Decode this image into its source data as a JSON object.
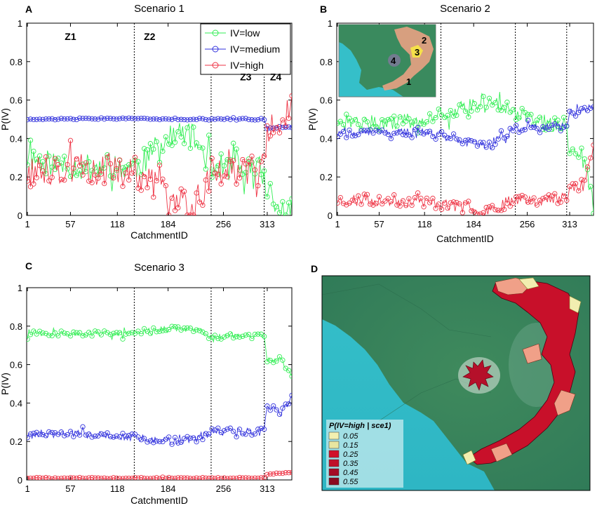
{
  "colors": {
    "low": "#33ee55",
    "medium": "#3333dd",
    "high": "#ee3344"
  },
  "chart_data": [
    {
      "panel": "A",
      "type": "line",
      "title": "Scenario 1",
      "xlabel": "CatchmentID",
      "ylabel": "P(IV)",
      "xticks": [
        1,
        57,
        118,
        184,
        256,
        313
      ],
      "xlim": [
        0,
        345
      ],
      "ylim": [
        0,
        1
      ],
      "yticks": [
        "0",
        "0.2",
        "0.4",
        "0.6",
        "0.8",
        "1"
      ],
      "zone_boundaries": [
        140,
        240,
        309
      ],
      "zones": [
        {
          "label": "Z1",
          "x": 57
        },
        {
          "label": "Z2",
          "x": 160
        },
        {
          "label": "Z3",
          "x": 285
        },
        {
          "label": "Z4",
          "x": 324
        }
      ],
      "legend": [
        "IV=low",
        "IV=medium",
        "IV=high"
      ],
      "series_desc": [
        {
          "name": "IV=low",
          "anchors": [
            [
              1,
              0.3
            ],
            [
              60,
              0.25
            ],
            [
              118,
              0.25
            ],
            [
              140,
              0.25
            ],
            [
              160,
              0.3
            ],
            [
              175,
              0.37
            ],
            [
              195,
              0.42
            ],
            [
              210,
              0.43
            ],
            [
              225,
              0.36
            ],
            [
              240,
              0.26
            ],
            [
              270,
              0.24
            ],
            [
              305,
              0.24
            ],
            [
              309,
              0.24
            ],
            [
              313,
              0.1
            ],
            [
              330,
              0.02
            ],
            [
              345,
              0.01
            ]
          ],
          "noise": 0.07,
          "seed": 11
        },
        {
          "name": "IV=medium",
          "anchors": [
            [
              1,
              0.5
            ],
            [
              140,
              0.505
            ],
            [
              240,
              0.5
            ],
            [
              309,
              0.5
            ],
            [
              313,
              0.45
            ],
            [
              330,
              0.46
            ],
            [
              345,
              0.46
            ]
          ],
          "noise": 0.004,
          "seed": 12
        },
        {
          "name": "IV=high",
          "anchors": [
            [
              1,
              0.22
            ],
            [
              60,
              0.25
            ],
            [
              118,
              0.23
            ],
            [
              140,
              0.23
            ],
            [
              165,
              0.16
            ],
            [
              190,
              0.07
            ],
            [
              210,
              0.05
            ],
            [
              225,
              0.09
            ],
            [
              240,
              0.23
            ],
            [
              270,
              0.24
            ],
            [
              305,
              0.24
            ],
            [
              309,
              0.25
            ],
            [
              313,
              0.44
            ],
            [
              330,
              0.48
            ],
            [
              345,
              0.55
            ]
          ],
          "noise": 0.08,
          "seed": 13
        }
      ]
    },
    {
      "panel": "B",
      "type": "line",
      "title": "Scenario 2",
      "xlabel": "CatchmentID",
      "ylabel": "P(IV)",
      "xticks": [
        1,
        57,
        118,
        184,
        256,
        313
      ],
      "xlim": [
        0,
        345
      ],
      "ylim": [
        0,
        1
      ],
      "yticks": [
        "0",
        "0.2",
        "0.4",
        "0.6",
        "0.8",
        "1"
      ],
      "zone_boundaries": [
        140,
        240,
        309
      ],
      "legend": [],
      "series_desc": [
        {
          "name": "IV=low",
          "anchors": [
            [
              1,
              0.5
            ],
            [
              60,
              0.48
            ],
            [
              118,
              0.5
            ],
            [
              140,
              0.52
            ],
            [
              170,
              0.56
            ],
            [
              200,
              0.6
            ],
            [
              220,
              0.58
            ],
            [
              240,
              0.53
            ],
            [
              270,
              0.49
            ],
            [
              305,
              0.47
            ],
            [
              309,
              0.46
            ],
            [
              313,
              0.3
            ],
            [
              330,
              0.33
            ],
            [
              345,
              0.05
            ]
          ],
          "noise": 0.04,
          "seed": 21
        },
        {
          "name": "IV=medium",
          "anchors": [
            [
              1,
              0.42
            ],
            [
              60,
              0.44
            ],
            [
              118,
              0.43
            ],
            [
              140,
              0.42
            ],
            [
              170,
              0.39
            ],
            [
              200,
              0.37
            ],
            [
              220,
              0.4
            ],
            [
              240,
              0.45
            ],
            [
              270,
              0.46
            ],
            [
              305,
              0.46
            ],
            [
              309,
              0.46
            ],
            [
              313,
              0.53
            ],
            [
              330,
              0.55
            ],
            [
              345,
              0.58
            ]
          ],
          "noise": 0.02,
          "seed": 22
        },
        {
          "name": "IV=high",
          "anchors": [
            [
              1,
              0.08
            ],
            [
              60,
              0.08
            ],
            [
              118,
              0.07
            ],
            [
              140,
              0.06
            ],
            [
              170,
              0.04
            ],
            [
              200,
              0.03
            ],
            [
              220,
              0.05
            ],
            [
              240,
              0.09
            ],
            [
              270,
              0.08
            ],
            [
              305,
              0.09
            ],
            [
              309,
              0.09
            ],
            [
              313,
              0.17
            ],
            [
              330,
              0.13
            ],
            [
              345,
              0.36
            ]
          ],
          "noise": 0.03,
          "seed": 23
        }
      ],
      "inset_labels": [
        "1",
        "2",
        "3",
        "4"
      ]
    },
    {
      "panel": "C",
      "type": "line",
      "title": "Scenario 3",
      "xlabel": "CatchmentID",
      "ylabel": "P(IV)",
      "xticks": [
        1,
        57,
        118,
        184,
        256,
        313
      ],
      "xlim": [
        0,
        345
      ],
      "ylim": [
        0,
        1
      ],
      "yticks": [
        "0",
        "0.2",
        "0.4",
        "0.6",
        "0.8",
        "1"
      ],
      "zone_boundaries": [
        140,
        240,
        309
      ],
      "legend": [],
      "series_desc": [
        {
          "name": "IV=low",
          "anchors": [
            [
              1,
              0.76
            ],
            [
              60,
              0.76
            ],
            [
              118,
              0.76
            ],
            [
              140,
              0.77
            ],
            [
              170,
              0.78
            ],
            [
              200,
              0.79
            ],
            [
              225,
              0.78
            ],
            [
              240,
              0.74
            ],
            [
              270,
              0.75
            ],
            [
              305,
              0.75
            ],
            [
              309,
              0.75
            ],
            [
              313,
              0.62
            ],
            [
              330,
              0.63
            ],
            [
              345,
              0.55
            ]
          ],
          "noise": 0.015,
          "seed": 31
        },
        {
          "name": "IV=medium",
          "anchors": [
            [
              1,
              0.23
            ],
            [
              60,
              0.24
            ],
            [
              118,
              0.23
            ],
            [
              140,
              0.22
            ],
            [
              170,
              0.21
            ],
            [
              200,
              0.2
            ],
            [
              225,
              0.22
            ],
            [
              240,
              0.25
            ],
            [
              270,
              0.25
            ],
            [
              305,
              0.25
            ],
            [
              309,
              0.25
            ],
            [
              313,
              0.38
            ],
            [
              330,
              0.36
            ],
            [
              345,
              0.42
            ]
          ],
          "noise": 0.02,
          "seed": 32
        },
        {
          "name": "IV=high",
          "anchors": [
            [
              1,
              0.01
            ],
            [
              309,
              0.01
            ],
            [
              313,
              0.03
            ],
            [
              345,
              0.04
            ]
          ],
          "noise": 0.003,
          "seed": 33
        }
      ]
    }
  ],
  "map_panel": {
    "panel": "D",
    "legend_title": "P(IV=high | sce1)",
    "legend_values": [
      "0.05",
      "0.15",
      "0.25",
      "0.35",
      "0.45",
      "0.55"
    ],
    "legend_colors": [
      "#f2f0b0",
      "#e8e6a0",
      "#d0112a",
      "#c0102a",
      "#a50a25",
      "#8a0a20"
    ]
  }
}
